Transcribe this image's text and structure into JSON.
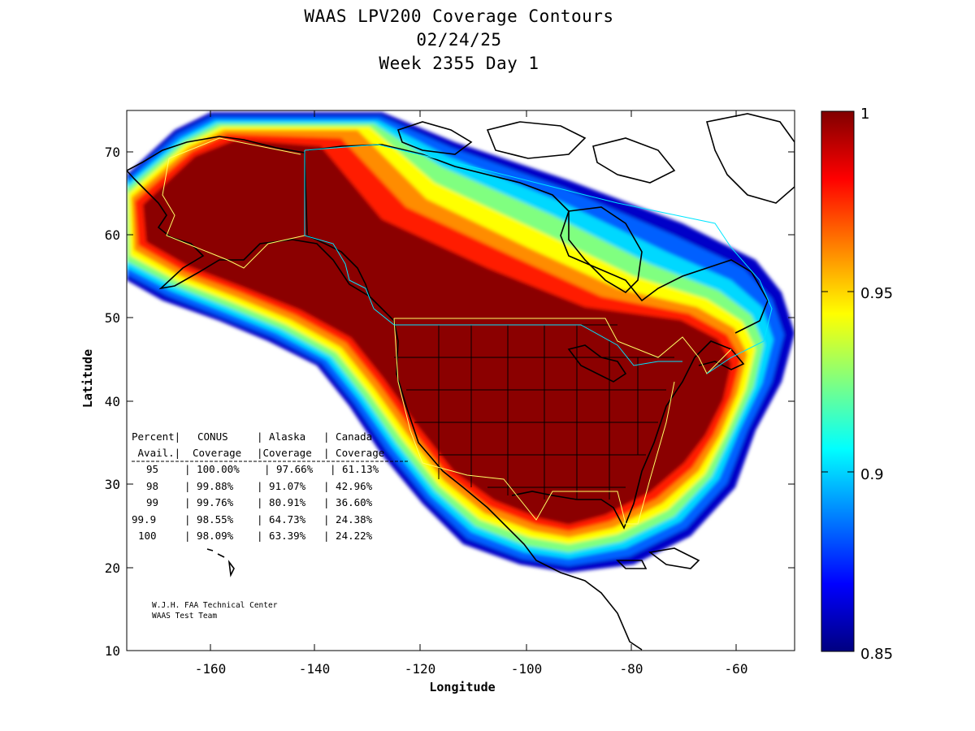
{
  "title": {
    "line1": "WAAS LPV200 Coverage Contours",
    "line2": "02/24/25",
    "line3": "Week 2355 Day 1"
  },
  "axes": {
    "xlabel": "Longitude",
    "ylabel": "Latitude",
    "x_ticks": [
      "-160",
      "-140",
      "-120",
      "-100",
      "-80",
      "-60"
    ],
    "y_ticks": [
      "10",
      "20",
      "30",
      "40",
      "50",
      "60",
      "70"
    ]
  },
  "colorbar": {
    "ticks": [
      "1",
      "0.95",
      "0.9",
      "0.85"
    ],
    "colors": [
      "#800000",
      "#ff0000",
      "#ff8000",
      "#ffff00",
      "#80ff80",
      "#00ffff",
      "#0080ff",
      "#0000ff",
      "#000080"
    ]
  },
  "table": {
    "header1": [
      "Percent|",
      "CONUS",
      "| Alaska",
      "| Canada"
    ],
    "header2": [
      " Avail.|",
      "Coverage",
      "|Coverage",
      "| Coverage"
    ],
    "rows": [
      [
        "95",
        "| 100.00%",
        "| 97.66%",
        "| 61.13%"
      ],
      [
        "98",
        "| 99.88%",
        "| 91.07%",
        "| 42.96%"
      ],
      [
        "99",
        "| 99.76%",
        "| 80.91%",
        "| 36.60%"
      ],
      [
        "99.9",
        "| 98.55%",
        "| 64.73%",
        "| 24.38%"
      ],
      [
        "100",
        "| 98.09%",
        "| 63.39%",
        "| 24.22%"
      ]
    ]
  },
  "credit": {
    "line1": "W.J.H. FAA Technical Center",
    "line2": "WAAS Test Team"
  }
}
